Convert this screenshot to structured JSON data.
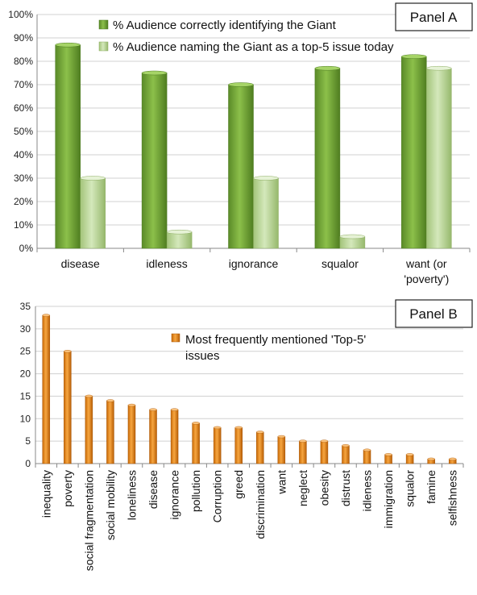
{
  "chart_data": [
    {
      "type": "bar",
      "panel_label": "Panel A",
      "categories": [
        "disease",
        "idleness",
        "ignorance",
        "squalor",
        "want (or 'poverty')"
      ],
      "category_lines": [
        [
          "disease"
        ],
        [
          "idleness"
        ],
        [
          "ignorance"
        ],
        [
          "squalor"
        ],
        [
          "want (or",
          "'poverty')"
        ]
      ],
      "series": [
        {
          "name": "% Audience correctly identifying the Giant",
          "values": [
            87,
            75,
            70,
            77,
            82
          ],
          "color": "#6a9a32"
        },
        {
          "name": "% Audience naming the Giant as a top-5 issue today",
          "values": [
            30,
            7,
            30,
            5,
            77
          ],
          "color": "#b5d48f"
        }
      ],
      "ylim": [
        0,
        100
      ],
      "yticks": [
        "0%",
        "10%",
        "20%",
        "30%",
        "40%",
        "50%",
        "60%",
        "70%",
        "80%",
        "90%",
        "100%"
      ],
      "grid": true,
      "legend_position": "top"
    },
    {
      "type": "bar",
      "panel_label": "Panel B",
      "categories": [
        "inequality",
        "poverty",
        "social fragmentation",
        "social mobility",
        "loneliness",
        "disease",
        "ignorance",
        "pollution",
        "Corruption",
        "greed",
        "discrimination",
        "want",
        "neglect",
        "obesity",
        "distrust",
        "idleness",
        "immigration",
        "squalor",
        "famine",
        "selfishness"
      ],
      "series": [
        {
          "name": "Most frequently mentioned 'Top-5' issues",
          "values": [
            33,
            25,
            15,
            14,
            13,
            12,
            12,
            9,
            8,
            8,
            7,
            6,
            5,
            5,
            4,
            3,
            2,
            2,
            1,
            1
          ],
          "color": "#e8891a"
        }
      ],
      "legend_lines": [
        "Most frequently mentioned 'Top-5'",
        "issues"
      ],
      "ylim": [
        0,
        35
      ],
      "yticks": [
        "0",
        "5",
        "10",
        "15",
        "20",
        "25",
        "30",
        "35"
      ],
      "grid": true,
      "legend_position": "top-right"
    }
  ]
}
